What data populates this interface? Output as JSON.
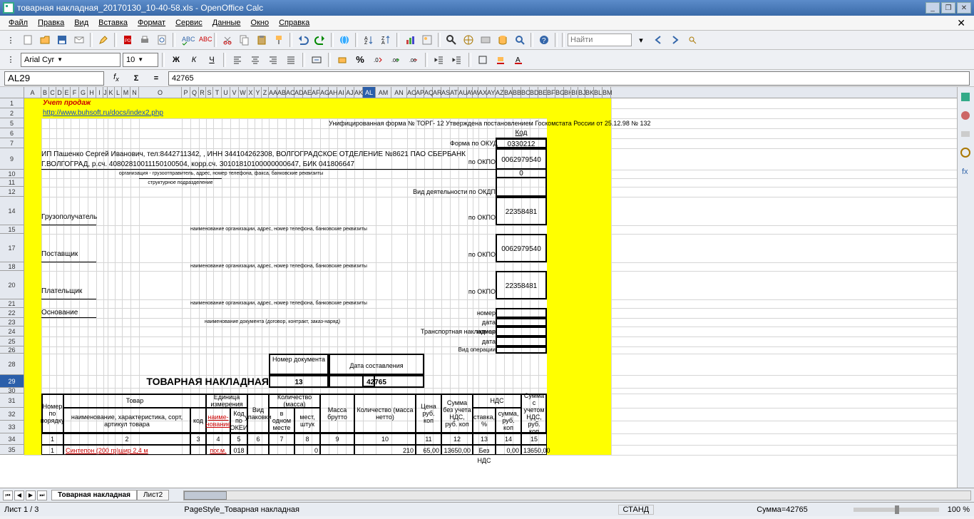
{
  "window": {
    "title": "товарная накладная_20170130_10-40-58.xls - OpenOffice Calc"
  },
  "menu": {
    "items": [
      "Файл",
      "Правка",
      "Вид",
      "Вставка",
      "Формат",
      "Сервис",
      "Данные",
      "Окно",
      "Справка"
    ]
  },
  "find": {
    "placeholder": "Найти"
  },
  "fontbar": {
    "font": "Arial Cyr",
    "size": "10"
  },
  "cellref": {
    "name": "AL29",
    "formula": "42765"
  },
  "columns": [
    {
      "l": "A",
      "w": 24
    },
    {
      "l": "B",
      "w": 11
    },
    {
      "l": "C",
      "w": 10
    },
    {
      "l": "D",
      "w": 10
    },
    {
      "l": "E",
      "w": 10
    },
    {
      "l": "F",
      "w": 12
    },
    {
      "l": "G",
      "w": 12
    },
    {
      "l": "H",
      "w": 12
    },
    {
      "l": "I",
      "w": 10
    },
    {
      "l": "J",
      "w": 6
    },
    {
      "l": "K",
      "w": 10
    },
    {
      "l": "L",
      "w": 10
    },
    {
      "l": "M",
      "w": 12
    },
    {
      "l": "N",
      "w": 12
    },
    {
      "l": "O",
      "w": 60
    },
    {
      "l": "P",
      "w": 12
    },
    {
      "l": "Q",
      "w": 12
    },
    {
      "l": "R",
      "w": 10
    },
    {
      "l": "S",
      "w": 10
    },
    {
      "l": "T",
      "w": 12
    },
    {
      "l": "U",
      "w": 12
    },
    {
      "l": "V",
      "w": 12
    },
    {
      "l": "W",
      "w": 12
    },
    {
      "l": "X",
      "w": 10
    },
    {
      "l": "Y",
      "w": 10
    },
    {
      "l": "Z",
      "w": 10
    },
    {
      "l": "AA",
      "w": 12
    },
    {
      "l": "AB",
      "w": 12
    },
    {
      "l": "AC",
      "w": 12
    },
    {
      "l": "AD",
      "w": 12
    },
    {
      "l": "AE",
      "w": 12
    },
    {
      "l": "AF",
      "w": 12
    },
    {
      "l": "AG",
      "w": 12
    },
    {
      "l": "AH",
      "w": 12
    },
    {
      "l": "AI",
      "w": 12
    },
    {
      "l": "AJ",
      "w": 12
    },
    {
      "l": "AK",
      "w": 12
    },
    {
      "l": "AL",
      "w": 18
    },
    {
      "l": "AM",
      "w": 22
    },
    {
      "l": "AN",
      "w": 22
    },
    {
      "l": "AO",
      "w": 12
    },
    {
      "l": "AP",
      "w": 12
    },
    {
      "l": "AQ",
      "w": 12
    },
    {
      "l": "AR",
      "w": 12
    },
    {
      "l": "AS",
      "w": 12
    },
    {
      "l": "AT",
      "w": 12
    },
    {
      "l": "AU",
      "w": 12
    },
    {
      "l": "AV",
      "w": 8
    },
    {
      "l": "AW",
      "w": 8
    },
    {
      "l": "AX",
      "w": 12
    },
    {
      "l": "AY",
      "w": 12
    },
    {
      "l": "AZ",
      "w": 12
    },
    {
      "l": "BA",
      "w": 12
    },
    {
      "l": "BB",
      "w": 12
    },
    {
      "l": "BC",
      "w": 12
    },
    {
      "l": "BD",
      "w": 12
    },
    {
      "l": "BE",
      "w": 12
    },
    {
      "l": "BF",
      "w": 12
    },
    {
      "l": "BG",
      "w": 12
    },
    {
      "l": "BH",
      "w": 10
    },
    {
      "l": "BI",
      "w": 10
    },
    {
      "l": "BJ",
      "w": 10
    },
    {
      "l": "BK",
      "w": 12
    },
    {
      "l": "BL",
      "w": 12
    },
    {
      "l": "BM",
      "w": 12
    }
  ],
  "rows": [
    {
      "n": 1,
      "h": 14
    },
    {
      "n": 2,
      "h": 14
    },
    {
      "n": 5,
      "h": 14
    },
    {
      "n": 6,
      "h": 14
    },
    {
      "n": 7,
      "h": 14
    },
    {
      "n": 9,
      "h": 30
    },
    {
      "n": 10,
      "h": 12
    },
    {
      "n": 11,
      "h": 12
    },
    {
      "n": 12,
      "h": 14
    },
    {
      "n": 14,
      "h": 40
    },
    {
      "n": 15,
      "h": 12
    },
    {
      "n": 17,
      "h": 40
    },
    {
      "n": 18,
      "h": 12
    },
    {
      "n": 20,
      "h": 40
    },
    {
      "n": 21,
      "h": 12
    },
    {
      "n": 22,
      "h": 14
    },
    {
      "n": 23,
      "h": 12
    },
    {
      "n": 24,
      "h": 14
    },
    {
      "n": 25,
      "h": 14
    },
    {
      "n": 26,
      "h": 10
    },
    {
      "n": 28,
      "h": 30
    },
    {
      "n": 29,
      "h": 18
    },
    {
      "n": 30,
      "h": 8
    },
    {
      "n": 31,
      "h": 20
    },
    {
      "n": 32,
      "h": 18
    },
    {
      "n": 33,
      "h": 18
    },
    {
      "n": 34,
      "h": 16
    },
    {
      "n": 35,
      "h": 14
    }
  ],
  "selected_col": "AL",
  "selected_row": 29,
  "content": {
    "A1_title": "Учет продаж",
    "A2_link": "http://www.buhsoft.ru/docs/index2.php",
    "top_right_text": "Унифицированная форма № ТОРГ- 12 Утверждена постановлением Госкомстата России от 25.12.98 № 132",
    "kod_label": "Код",
    "forma_okud": "Форма по ОКУД",
    "forma_okud_val": "0330212",
    "org_line": "ИП Пашенко Сергей Иванович, тел:8442711342, ,  ИНН 344104262308, ВОЛГОГРАДСКОЕ ОТДЕЛЕНИЕ №8621 ПАО СБЕРБАНК Г.ВОЛГОГРАД, р.сч. 40802810011150100504, корр.сч. 30101810100000000647, БИК 041806647",
    "sub1": "организация - грузоотправитель, адрес, номер телефона, факса, банковские реквизиты",
    "sub2": "структурное подразделение",
    "po_okpo": "по ОКПО",
    "okpo_val1": "0062979540",
    "zero_val": "0",
    "vid_deyat": "Вид деятельности по ОКДП",
    "gruzopoluch": "Грузополучатель",
    "okpo_val2": "22358481",
    "sub3": "наименование организации, адрес, номер телефона, банковские реквизиты",
    "postavshchik": "Поставщик",
    "okpo_val3": "0062979540",
    "platelshchik": "Плательщик",
    "okpo_val4": "22358481",
    "osnovanie": "Основание",
    "sub_dogovor": "наименование документа (договор, контракт, заказ-наряд)",
    "nomer": "номер",
    "data_lbl": "дата",
    "transp": "Транспортная накладная",
    "vid_oper": "Вид операции",
    "doc_title": "ТОВАРНАЯ НАКЛАДНАЯ",
    "nomer_dok_lbl": "Номер документа",
    "data_sost_lbl": "Дата составления",
    "nomer_dok_val": "13",
    "data_sost_val": "42765",
    "tbl_h": {
      "nomer": "Номер по порядку",
      "tovar": "Товар",
      "tovar_name": "наименование, характеристика, сорт, артикул товара",
      "kod": "код",
      "ed_izm": "Единица измерения",
      "naime": "наиме-нование",
      "kod_okei": "Код по ОКЕИ",
      "vid_upak": "Вид упаковки",
      "kolvo": "Количество (масса)",
      "v_odnom": "в одном месте",
      "mest": "мест, штук",
      "massa_brutto": "Масса брутто",
      "kolvo_netto": "Количество (масса нетто)",
      "cena": "Цена руб. коп",
      "summa_bez": "Сумма без учета НДС, руб. коп",
      "nds": "НДС",
      "stavka": "ставка, %",
      "summa_nds": "сумма, руб. коп",
      "summa_s": "Сумма с учетом НДС, руб. коп"
    },
    "col_nums": [
      "1",
      "2",
      "3",
      "4",
      "5",
      "6",
      "7",
      "8",
      "9",
      "10",
      "11",
      "12",
      "13",
      "14",
      "15"
    ],
    "row35": {
      "n": "1",
      "name": "Синтепон (200 гр)шир 2,4 м",
      "unit": "пог.м.",
      "okei": "018",
      "mest": "0",
      "kolvo": "210",
      "cena": "65,00",
      "summa_bez": "13650,00",
      "stavka": "Без НДС",
      "summa_nds": "0,00",
      "summa_s": "13650,00"
    }
  },
  "tabs": {
    "active": "Товарная накладная",
    "inactive": "Лист2"
  },
  "status": {
    "sheet": "Лист 1 / 3",
    "style": "PageStyle_Товарная накладная",
    "mode": "СТАНД",
    "sum": "Сумма=42765",
    "zoom": "100 %"
  },
  "colors": {
    "yellow": "#ffff00",
    "link": "#0b47cf",
    "titlebar_grad_top": "#5c8cca",
    "titlebar_grad_bot": "#3a6aa8",
    "selected": "#2b5faa"
  }
}
